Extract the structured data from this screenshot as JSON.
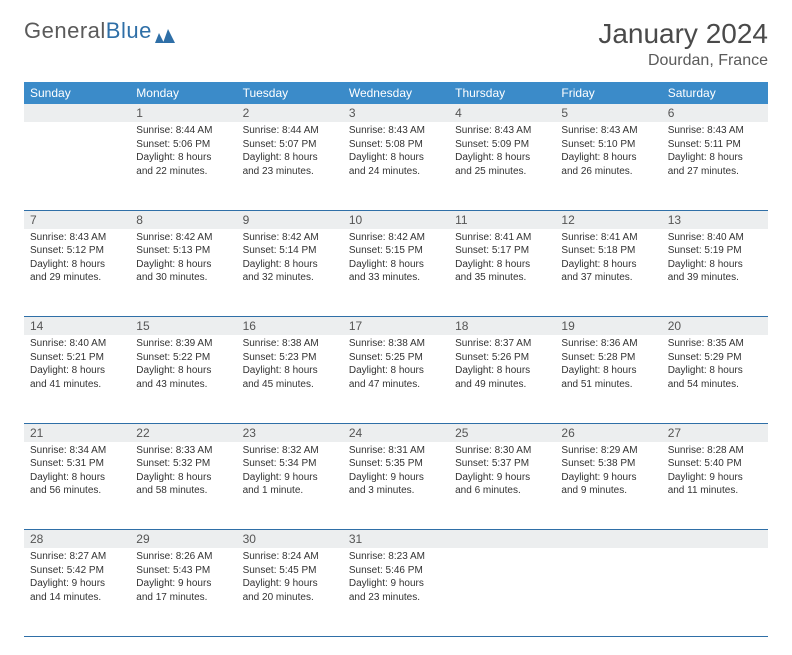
{
  "brand": {
    "part1": "General",
    "part2": "Blue"
  },
  "title": "January 2024",
  "location": "Dourdan, France",
  "header_bg": "#3b8bc9",
  "daynum_bg": "#eceeef",
  "rule_color": "#2f6fa7",
  "weekdays": [
    "Sunday",
    "Monday",
    "Tuesday",
    "Wednesday",
    "Thursday",
    "Friday",
    "Saturday"
  ],
  "weeks": [
    [
      null,
      {
        "n": "1",
        "sr": "8:44 AM",
        "ss": "5:06 PM",
        "dl": "8 hours and 22 minutes."
      },
      {
        "n": "2",
        "sr": "8:44 AM",
        "ss": "5:07 PM",
        "dl": "8 hours and 23 minutes."
      },
      {
        "n": "3",
        "sr": "8:43 AM",
        "ss": "5:08 PM",
        "dl": "8 hours and 24 minutes."
      },
      {
        "n": "4",
        "sr": "8:43 AM",
        "ss": "5:09 PM",
        "dl": "8 hours and 25 minutes."
      },
      {
        "n": "5",
        "sr": "8:43 AM",
        "ss": "5:10 PM",
        "dl": "8 hours and 26 minutes."
      },
      {
        "n": "6",
        "sr": "8:43 AM",
        "ss": "5:11 PM",
        "dl": "8 hours and 27 minutes."
      }
    ],
    [
      {
        "n": "7",
        "sr": "8:43 AM",
        "ss": "5:12 PM",
        "dl": "8 hours and 29 minutes."
      },
      {
        "n": "8",
        "sr": "8:42 AM",
        "ss": "5:13 PM",
        "dl": "8 hours and 30 minutes."
      },
      {
        "n": "9",
        "sr": "8:42 AM",
        "ss": "5:14 PM",
        "dl": "8 hours and 32 minutes."
      },
      {
        "n": "10",
        "sr": "8:42 AM",
        "ss": "5:15 PM",
        "dl": "8 hours and 33 minutes."
      },
      {
        "n": "11",
        "sr": "8:41 AM",
        "ss": "5:17 PM",
        "dl": "8 hours and 35 minutes."
      },
      {
        "n": "12",
        "sr": "8:41 AM",
        "ss": "5:18 PM",
        "dl": "8 hours and 37 minutes."
      },
      {
        "n": "13",
        "sr": "8:40 AM",
        "ss": "5:19 PM",
        "dl": "8 hours and 39 minutes."
      }
    ],
    [
      {
        "n": "14",
        "sr": "8:40 AM",
        "ss": "5:21 PM",
        "dl": "8 hours and 41 minutes."
      },
      {
        "n": "15",
        "sr": "8:39 AM",
        "ss": "5:22 PM",
        "dl": "8 hours and 43 minutes."
      },
      {
        "n": "16",
        "sr": "8:38 AM",
        "ss": "5:23 PM",
        "dl": "8 hours and 45 minutes."
      },
      {
        "n": "17",
        "sr": "8:38 AM",
        "ss": "5:25 PM",
        "dl": "8 hours and 47 minutes."
      },
      {
        "n": "18",
        "sr": "8:37 AM",
        "ss": "5:26 PM",
        "dl": "8 hours and 49 minutes."
      },
      {
        "n": "19",
        "sr": "8:36 AM",
        "ss": "5:28 PM",
        "dl": "8 hours and 51 minutes."
      },
      {
        "n": "20",
        "sr": "8:35 AM",
        "ss": "5:29 PM",
        "dl": "8 hours and 54 minutes."
      }
    ],
    [
      {
        "n": "21",
        "sr": "8:34 AM",
        "ss": "5:31 PM",
        "dl": "8 hours and 56 minutes."
      },
      {
        "n": "22",
        "sr": "8:33 AM",
        "ss": "5:32 PM",
        "dl": "8 hours and 58 minutes."
      },
      {
        "n": "23",
        "sr": "8:32 AM",
        "ss": "5:34 PM",
        "dl": "9 hours and 1 minute."
      },
      {
        "n": "24",
        "sr": "8:31 AM",
        "ss": "5:35 PM",
        "dl": "9 hours and 3 minutes."
      },
      {
        "n": "25",
        "sr": "8:30 AM",
        "ss": "5:37 PM",
        "dl": "9 hours and 6 minutes."
      },
      {
        "n": "26",
        "sr": "8:29 AM",
        "ss": "5:38 PM",
        "dl": "9 hours and 9 minutes."
      },
      {
        "n": "27",
        "sr": "8:28 AM",
        "ss": "5:40 PM",
        "dl": "9 hours and 11 minutes."
      }
    ],
    [
      {
        "n": "28",
        "sr": "8:27 AM",
        "ss": "5:42 PM",
        "dl": "9 hours and 14 minutes."
      },
      {
        "n": "29",
        "sr": "8:26 AM",
        "ss": "5:43 PM",
        "dl": "9 hours and 17 minutes."
      },
      {
        "n": "30",
        "sr": "8:24 AM",
        "ss": "5:45 PM",
        "dl": "9 hours and 20 minutes."
      },
      {
        "n": "31",
        "sr": "8:23 AM",
        "ss": "5:46 PM",
        "dl": "9 hours and 23 minutes."
      },
      null,
      null,
      null
    ]
  ],
  "labels": {
    "sunrise": "Sunrise:",
    "sunset": "Sunset:",
    "daylight": "Daylight:"
  }
}
